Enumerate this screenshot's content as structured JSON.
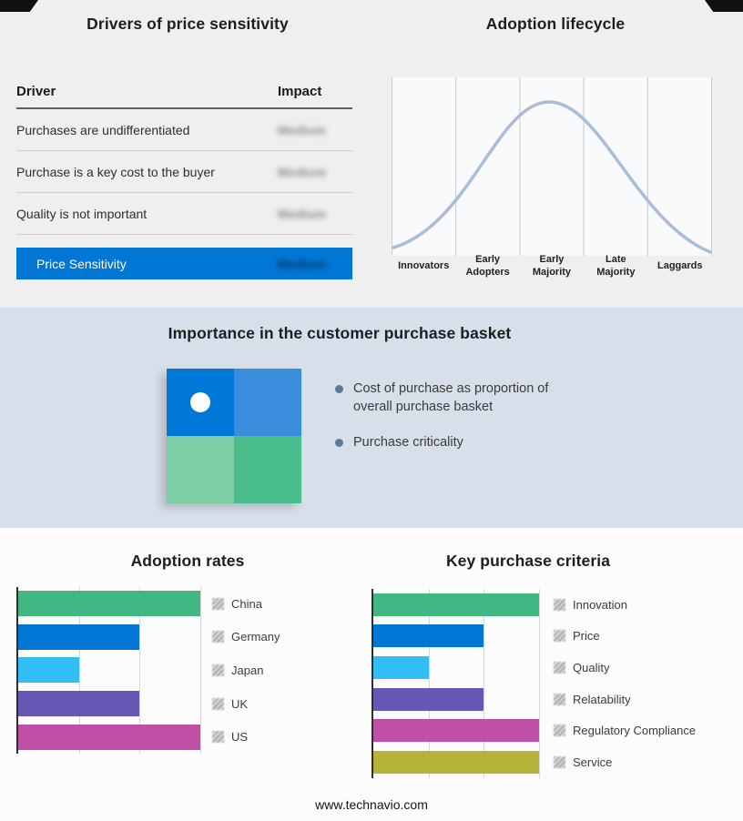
{
  "colors": {
    "accent_blue": "#0077d4",
    "band_background": "#d7e0ea",
    "bullet_dot": "#5a7a99"
  },
  "drivers_panel": {
    "title": "Drivers of price sensitivity",
    "header": {
      "driver": "Driver",
      "impact": "Impact"
    },
    "rows": [
      {
        "driver": "Purchases are undifferentiated",
        "impact": "Medium"
      },
      {
        "driver": "Purchase is a key cost to the buyer",
        "impact": "Medium"
      },
      {
        "driver": "Quality is not important",
        "impact": "Medium"
      }
    ],
    "summary": {
      "driver": "Price Sensitivity",
      "impact": "Medium"
    },
    "note": "Impact values appear blurred/redacted in the source image"
  },
  "lifecycle_panel": {
    "stages": [
      {
        "line1": "Innovators",
        "line2": ""
      },
      {
        "line1": "Early",
        "line2": "Adopters"
      },
      {
        "line1": "Early",
        "line2": "Majority"
      },
      {
        "line1": "Late",
        "line2": "Majority"
      },
      {
        "line1": "Laggards",
        "line2": ""
      }
    ]
  },
  "basket_panel": {
    "title": "Importance in the customer purchase basket",
    "bullets": [
      "Cost of purchase as proportion of overall purchase basket",
      "Purchase criticality"
    ],
    "quadrant_colors": [
      "#0078d7",
      "#3b8ede",
      "#7ecfa6",
      "#4abd8c"
    ]
  },
  "footer": {
    "url": "www.technavio.com"
  },
  "chart_data": [
    {
      "type": "line",
      "title": "Adoption lifecycle",
      "x_categories": [
        "Innovators",
        "Early Adopters",
        "Early Majority",
        "Late Majority",
        "Laggards"
      ],
      "shape": "bell curve rising from Innovators, peaking at Early Majority, falling to Laggards",
      "color": "#a9bdd6",
      "grid": true,
      "ylabel": "",
      "xlabel": ""
    },
    {
      "type": "bar",
      "orientation": "horizontal",
      "title": "Adoption rates",
      "categories": [
        "China",
        "Germany",
        "Japan",
        "UK",
        "US"
      ],
      "values": [
        3,
        2,
        1,
        2,
        3
      ],
      "max": 3,
      "value_note": "lengths read against 3 equal gridline intervals; no numeric axis labels shown",
      "colors": [
        "#41b883",
        "#0077d4",
        "#33bdf5",
        "#6658b4",
        "#bf4fa7"
      ],
      "grid": true,
      "legend_position": "right"
    },
    {
      "type": "bar",
      "orientation": "horizontal",
      "title": "Key purchase criteria",
      "categories": [
        "Innovation",
        "Price",
        "Quality",
        "Relatability",
        "Regulatory Compliance",
        "Service"
      ],
      "values": [
        3,
        2,
        1,
        2,
        3,
        3
      ],
      "max": 3,
      "value_note": "lengths read against 3 equal gridline intervals; no numeric axis labels shown",
      "colors": [
        "#41b883",
        "#0077d4",
        "#33bdf5",
        "#6658b4",
        "#bf4fa7",
        "#b6b339"
      ],
      "grid": true,
      "legend_position": "right"
    },
    {
      "type": "table",
      "title": "Drivers of price sensitivity",
      "columns": [
        "Driver",
        "Impact"
      ],
      "rows": [
        [
          "Purchases are undifferentiated",
          "Medium"
        ],
        [
          "Purchase is a key cost to the buyer",
          "Medium"
        ],
        [
          "Quality is not important",
          "Medium"
        ],
        [
          "Price Sensitivity",
          "Medium"
        ]
      ]
    }
  ]
}
